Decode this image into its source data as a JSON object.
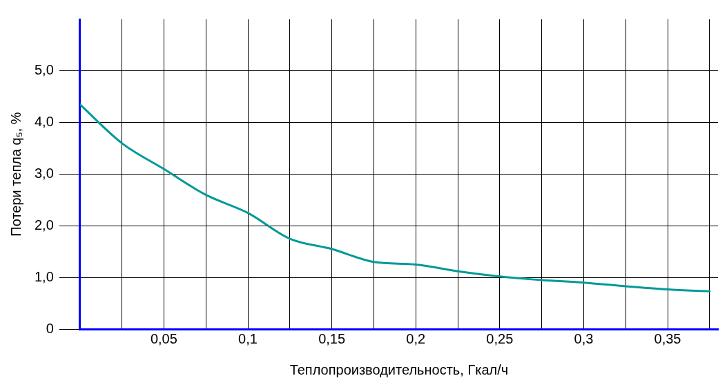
{
  "chart_data": {
    "type": "line",
    "xlabel": "Теплопроизводительность, Гкал/ч",
    "ylabel": "Потери тепла q₅, %",
    "x": [
      0,
      0.025,
      0.05,
      0.075,
      0.1,
      0.125,
      0.15,
      0.175,
      0.2,
      0.225,
      0.25,
      0.275,
      0.3,
      0.325,
      0.35,
      0.375
    ],
    "series": [
      {
        "color": "#009999",
        "values": [
          4.35,
          3.6,
          3.1,
          2.6,
          2.25,
          1.75,
          1.55,
          1.3,
          1.25,
          1.12,
          1.02,
          0.95,
          0.9,
          0.83,
          0.77,
          0.73
        ]
      }
    ],
    "xlim": [
      0,
      0.38
    ],
    "xticks": [
      {
        "value": 0.025,
        "label": null
      },
      {
        "value": 0.05,
        "label": "0,05"
      },
      {
        "value": 0.075,
        "label": null
      },
      {
        "value": 0.1,
        "label": "0,1"
      },
      {
        "value": 0.125,
        "label": null
      },
      {
        "value": 0.15,
        "label": "0,15"
      },
      {
        "value": 0.175,
        "label": null
      },
      {
        "value": 0.2,
        "label": "0,2"
      },
      {
        "value": 0.225,
        "label": null
      },
      {
        "value": 0.25,
        "label": "0,25"
      },
      {
        "value": 0.275,
        "label": null
      },
      {
        "value": 0.3,
        "label": "0,3"
      },
      {
        "value": 0.325,
        "label": null
      },
      {
        "value": 0.35,
        "label": "0,35"
      },
      {
        "value": 0.375,
        "label": null
      }
    ],
    "ylim": [
      0,
      6
    ],
    "yticks": [
      0,
      {
        "value": 1,
        "label": "1,0"
      },
      {
        "value": 2,
        "label": "2,0"
      },
      {
        "value": 3,
        "label": "3,0"
      },
      {
        "value": 4,
        "label": "4,0"
      },
      {
        "value": 5,
        "label": "5,0"
      }
    ],
    "grid": true,
    "legend": false,
    "marker": "none",
    "line_style": "solid"
  }
}
